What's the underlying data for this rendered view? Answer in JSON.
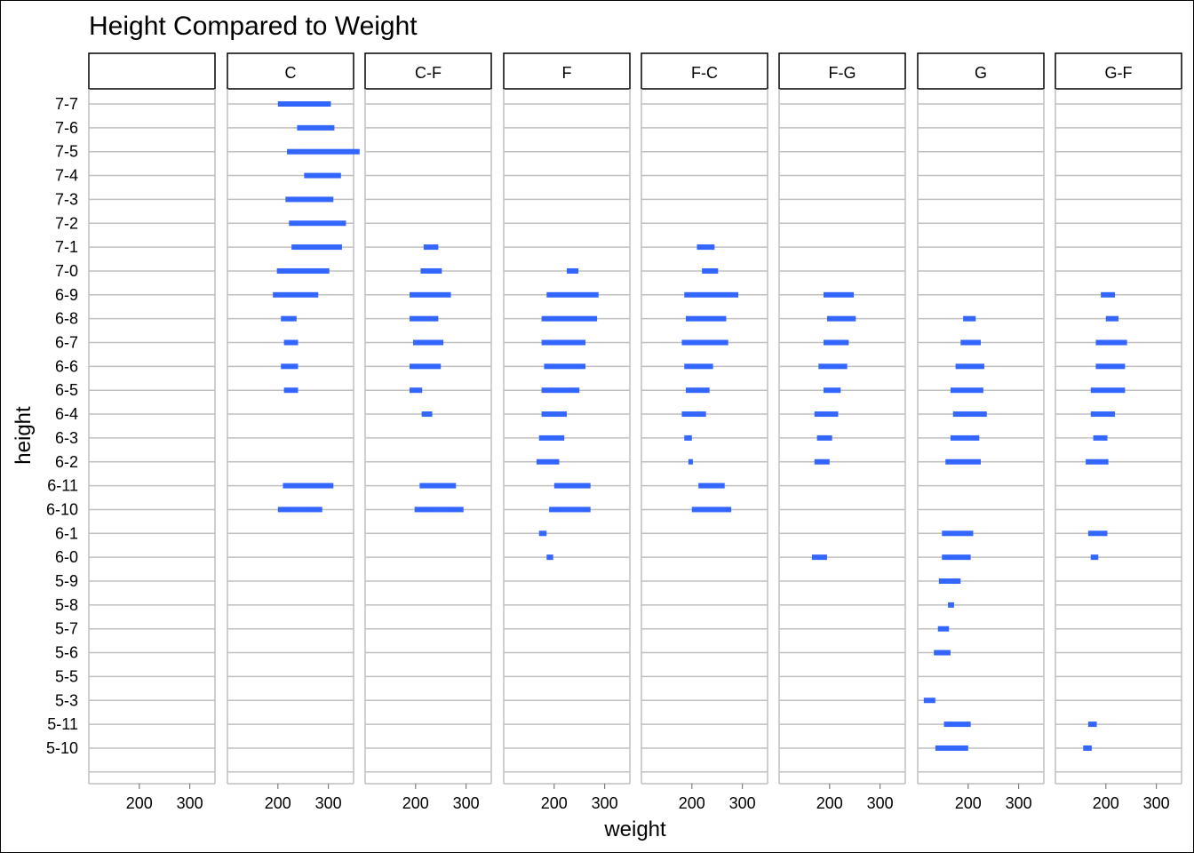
{
  "chart_data": {
    "type": "faceted-range-bar",
    "title": "Height Compared to Weight",
    "xlabel": "weight",
    "ylabel": "height",
    "xlim": [
      100,
      350
    ],
    "x_ticks": [
      200,
      300
    ],
    "x_tick_labels": [
      "200",
      "300"
    ],
    "grid": true,
    "bar_color": "#3366FF",
    "heights": [
      "7-7",
      "7-6",
      "7-5",
      "7-4",
      "7-3",
      "7-2",
      "7-1",
      "7-0",
      "6-9",
      "6-8",
      "6-7",
      "6-6",
      "6-5",
      "6-4",
      "6-3",
      "6-2",
      "6-11",
      "6-10",
      "6-1",
      "6-0",
      "5-9",
      "5-8",
      "5-7",
      "5-6",
      "5-5",
      "5-3",
      "5-11",
      "5-10",
      ""
    ],
    "facets": [
      {
        "label": "",
        "ranges": []
      },
      {
        "label": "C",
        "ranges": [
          {
            "height": "7-7",
            "min": 200,
            "max": 305
          },
          {
            "height": "7-6",
            "min": 238,
            "max": 312
          },
          {
            "height": "7-5",
            "min": 218,
            "max": 362
          },
          {
            "height": "7-4",
            "min": 252,
            "max": 325
          },
          {
            "height": "7-3",
            "min": 215,
            "max": 310
          },
          {
            "height": "7-2",
            "min": 222,
            "max": 335
          },
          {
            "height": "7-1",
            "min": 227,
            "max": 327
          },
          {
            "height": "7-0",
            "min": 198,
            "max": 302
          },
          {
            "height": "6-9",
            "min": 190,
            "max": 280
          },
          {
            "height": "6-8",
            "min": 206,
            "max": 237
          },
          {
            "height": "6-7",
            "min": 212,
            "max": 240
          },
          {
            "height": "6-6",
            "min": 206,
            "max": 240
          },
          {
            "height": "6-5",
            "min": 212,
            "max": 240
          },
          {
            "height": "6-11",
            "min": 210,
            "max": 310
          },
          {
            "height": "6-10",
            "min": 200,
            "max": 288
          }
        ]
      },
      {
        "label": "C-F",
        "ranges": [
          {
            "height": "7-1",
            "min": 216,
            "max": 245
          },
          {
            "height": "7-0",
            "min": 210,
            "max": 252
          },
          {
            "height": "6-9",
            "min": 188,
            "max": 270
          },
          {
            "height": "6-8",
            "min": 188,
            "max": 245
          },
          {
            "height": "6-7",
            "min": 195,
            "max": 255
          },
          {
            "height": "6-6",
            "min": 188,
            "max": 250
          },
          {
            "height": "6-5",
            "min": 188,
            "max": 213
          },
          {
            "height": "6-4",
            "min": 212,
            "max": 233
          },
          {
            "height": "6-11",
            "min": 208,
            "max": 280
          },
          {
            "height": "6-10",
            "min": 198,
            "max": 295
          }
        ]
      },
      {
        "label": "F",
        "ranges": [
          {
            "height": "7-0",
            "min": 225,
            "max": 248
          },
          {
            "height": "6-9",
            "min": 185,
            "max": 288
          },
          {
            "height": "6-8",
            "min": 175,
            "max": 285
          },
          {
            "height": "6-7",
            "min": 175,
            "max": 262
          },
          {
            "height": "6-6",
            "min": 180,
            "max": 262
          },
          {
            "height": "6-5",
            "min": 175,
            "max": 250
          },
          {
            "height": "6-4",
            "min": 175,
            "max": 225
          },
          {
            "height": "6-3",
            "min": 170,
            "max": 220
          },
          {
            "height": "6-2",
            "min": 165,
            "max": 210
          },
          {
            "height": "6-11",
            "min": 200,
            "max": 272
          },
          {
            "height": "6-10",
            "min": 190,
            "max": 272
          },
          {
            "height": "6-1",
            "min": 170,
            "max": 185
          },
          {
            "height": "6-0",
            "min": 185,
            "max": 198
          }
        ]
      },
      {
        "label": "F-C",
        "ranges": [
          {
            "height": "7-1",
            "min": 210,
            "max": 245
          },
          {
            "height": "7-0",
            "min": 220,
            "max": 252
          },
          {
            "height": "6-9",
            "min": 185,
            "max": 292
          },
          {
            "height": "6-8",
            "min": 188,
            "max": 268
          },
          {
            "height": "6-7",
            "min": 180,
            "max": 272
          },
          {
            "height": "6-6",
            "min": 185,
            "max": 242
          },
          {
            "height": "6-5",
            "min": 188,
            "max": 235
          },
          {
            "height": "6-4",
            "min": 180,
            "max": 228
          },
          {
            "height": "6-3",
            "min": 185,
            "max": 200
          },
          {
            "height": "6-2",
            "min": 193,
            "max": 202
          },
          {
            "height": "6-11",
            "min": 213,
            "max": 265
          },
          {
            "height": "6-10",
            "min": 200,
            "max": 278
          }
        ]
      },
      {
        "label": "F-G",
        "ranges": [
          {
            "height": "6-9",
            "min": 188,
            "max": 248
          },
          {
            "height": "6-8",
            "min": 195,
            "max": 252
          },
          {
            "height": "6-7",
            "min": 188,
            "max": 238
          },
          {
            "height": "6-6",
            "min": 178,
            "max": 235
          },
          {
            "height": "6-5",
            "min": 188,
            "max": 222
          },
          {
            "height": "6-4",
            "min": 170,
            "max": 217
          },
          {
            "height": "6-3",
            "min": 175,
            "max": 205
          },
          {
            "height": "6-2",
            "min": 170,
            "max": 200
          },
          {
            "height": "6-0",
            "min": 165,
            "max": 195
          }
        ]
      },
      {
        "label": "G",
        "ranges": [
          {
            "height": "6-8",
            "min": 190,
            "max": 215
          },
          {
            "height": "6-7",
            "min": 185,
            "max": 225
          },
          {
            "height": "6-6",
            "min": 175,
            "max": 232
          },
          {
            "height": "6-5",
            "min": 165,
            "max": 230
          },
          {
            "height": "6-4",
            "min": 170,
            "max": 237
          },
          {
            "height": "6-3",
            "min": 165,
            "max": 222
          },
          {
            "height": "6-2",
            "min": 155,
            "max": 225
          },
          {
            "height": "6-1",
            "min": 148,
            "max": 210
          },
          {
            "height": "6-0",
            "min": 148,
            "max": 205
          },
          {
            "height": "5-9",
            "min": 142,
            "max": 185
          },
          {
            "height": "5-8",
            "min": 160,
            "max": 172
          },
          {
            "height": "5-7",
            "min": 140,
            "max": 162
          },
          {
            "height": "5-6",
            "min": 132,
            "max": 165
          },
          {
            "height": "5-3",
            "min": 112,
            "max": 135
          },
          {
            "height": "5-11",
            "min": 152,
            "max": 205
          },
          {
            "height": "5-10",
            "min": 135,
            "max": 200
          }
        ]
      },
      {
        "label": "G-F",
        "ranges": [
          {
            "height": "6-9",
            "min": 190,
            "max": 218
          },
          {
            "height": "6-8",
            "min": 200,
            "max": 225
          },
          {
            "height": "6-7",
            "min": 180,
            "max": 242
          },
          {
            "height": "6-6",
            "min": 180,
            "max": 238
          },
          {
            "height": "6-5",
            "min": 170,
            "max": 238
          },
          {
            "height": "6-4",
            "min": 170,
            "max": 218
          },
          {
            "height": "6-3",
            "min": 175,
            "max": 203
          },
          {
            "height": "6-2",
            "min": 160,
            "max": 205
          },
          {
            "height": "6-1",
            "min": 165,
            "max": 203
          },
          {
            "height": "6-0",
            "min": 170,
            "max": 185
          },
          {
            "height": "5-11",
            "min": 165,
            "max": 182
          },
          {
            "height": "5-10",
            "min": 155,
            "max": 172
          }
        ]
      }
    ]
  }
}
